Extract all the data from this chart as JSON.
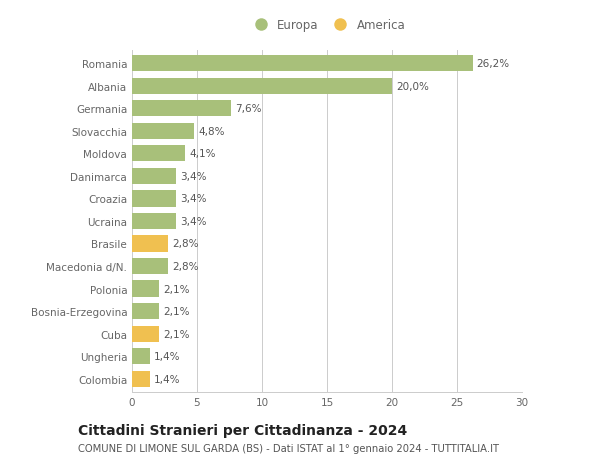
{
  "categories": [
    "Romania",
    "Albania",
    "Germania",
    "Slovacchia",
    "Moldova",
    "Danimarca",
    "Croazia",
    "Ucraina",
    "Brasile",
    "Macedonia d/N.",
    "Polonia",
    "Bosnia-Erzegovina",
    "Cuba",
    "Ungheria",
    "Colombia"
  ],
  "values": [
    26.2,
    20.0,
    7.6,
    4.8,
    4.1,
    3.4,
    3.4,
    3.4,
    2.8,
    2.8,
    2.1,
    2.1,
    2.1,
    1.4,
    1.4
  ],
  "labels": [
    "26,2%",
    "20,0%",
    "7,6%",
    "4,8%",
    "4,1%",
    "3,4%",
    "3,4%",
    "3,4%",
    "2,8%",
    "2,8%",
    "2,1%",
    "2,1%",
    "2,1%",
    "1,4%",
    "1,4%"
  ],
  "colors": [
    "#a8c07a",
    "#a8c07a",
    "#a8c07a",
    "#a8c07a",
    "#a8c07a",
    "#a8c07a",
    "#a8c07a",
    "#a8c07a",
    "#f0c050",
    "#a8c07a",
    "#a8c07a",
    "#a8c07a",
    "#f0c050",
    "#a8c07a",
    "#f0c050"
  ],
  "europa_color": "#a8c07a",
  "america_color": "#f0c050",
  "xlim": [
    0,
    30
  ],
  "xticks": [
    0,
    5,
    10,
    15,
    20,
    25,
    30
  ],
  "title": "Cittadini Stranieri per Cittadinanza - 2024",
  "subtitle": "COMUNE DI LIMONE SUL GARDA (BS) - Dati ISTAT al 1° gennaio 2024 - TUTTITALIA.IT",
  "legend_europa": "Europa",
  "legend_america": "America",
  "background_color": "#ffffff",
  "grid_color": "#cccccc",
  "bar_height": 0.72,
  "label_fontsize": 7.5,
  "tick_fontsize": 7.5,
  "title_fontsize": 10,
  "subtitle_fontsize": 7.2,
  "label_color": "#555555",
  "tick_color": "#666666"
}
